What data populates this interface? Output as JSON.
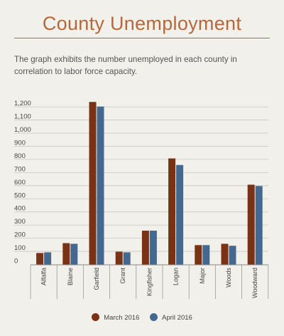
{
  "header": {
    "title": "County Unemployment",
    "subtitle": "The graph exhibits the number unemployed in each county in correlation to labor force capacity."
  },
  "colors": {
    "march": "#7a3214",
    "april": "#44688e",
    "grid": "#c9c6c0",
    "title": "#b5683a"
  },
  "chart_data": {
    "type": "bar",
    "title": "County Unemployment",
    "categories": [
      "Alfalfa",
      "Blaine",
      "Garfield",
      "Grant",
      "Kingfisher",
      "Logan",
      "Major",
      "Woods",
      "Woodward"
    ],
    "series": [
      {
        "name": "March 2016",
        "values": [
          90,
          165,
          1240,
          100,
          260,
          810,
          150,
          160,
          610
        ]
      },
      {
        "name": "April 2016",
        "values": [
          95,
          160,
          1205,
          95,
          260,
          760,
          150,
          145,
          600
        ]
      }
    ],
    "yticks": [
      "0",
      "100",
      "200",
      "300",
      "400",
      "500",
      "600",
      "700",
      "800",
      "900",
      "1,000",
      "1,100",
      "1,200"
    ],
    "ylim": [
      0,
      1250
    ],
    "xlabel": "",
    "ylabel": "",
    "grid": true,
    "legend_position": "bottom"
  }
}
